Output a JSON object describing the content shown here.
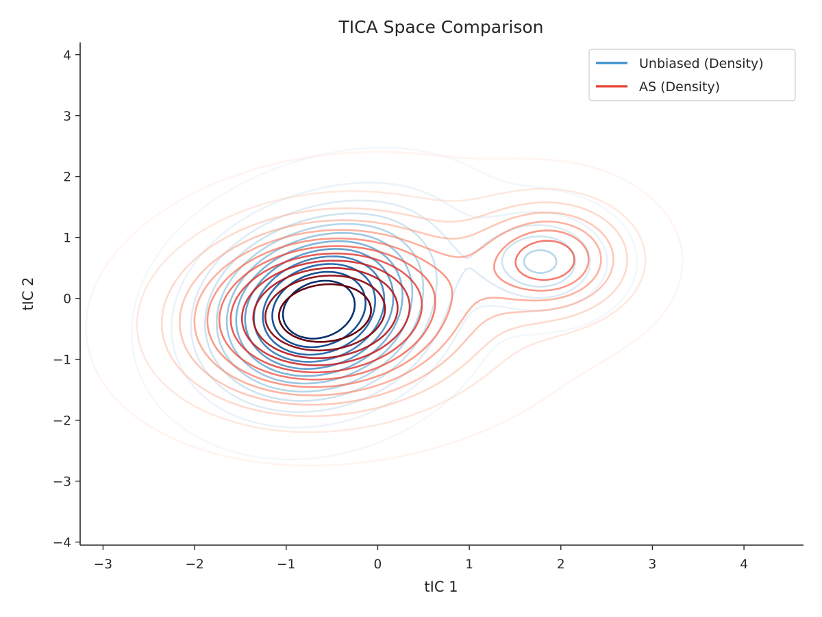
{
  "chart_data": {
    "type": "contour",
    "title": "TICA Space Comparison",
    "xlabel": "tIC 1",
    "ylabel": "tIC 2",
    "xlim": [
      -3.25,
      4.65
    ],
    "ylim": [
      -4.05,
      4.2
    ],
    "xticks": [
      -3,
      -2,
      -1,
      0,
      1,
      2,
      3,
      4
    ],
    "yticks": [
      -4,
      -3,
      -2,
      -1,
      0,
      1,
      2,
      3,
      4
    ],
    "xtick_labels": [
      "−3",
      "−2",
      "−1",
      "0",
      "1",
      "2",
      "3",
      "4"
    ],
    "ytick_labels": [
      "−4",
      "−3",
      "−2",
      "−1",
      "0",
      "1",
      "2",
      "3",
      "4"
    ],
    "grid": false,
    "legend": {
      "position": "top-right",
      "entries": [
        {
          "label": "Unbiased (Density)",
          "color": "#3a8fcd"
        },
        {
          "label": "AS (Density)",
          "color": "#e4402f"
        }
      ]
    },
    "series": [
      {
        "name": "Unbiased (Density)",
        "colormap": "Blues",
        "levels": 12,
        "components": [
          {
            "cx": -0.65,
            "cy": -0.2,
            "sx": 0.75,
            "sy": 0.9,
            "rho": 0.15,
            "w": 0.85
          },
          {
            "cx": 1.8,
            "cy": 0.6,
            "sx": 0.45,
            "sy": 0.5,
            "rho": 0.0,
            "w": 0.1
          },
          {
            "cx": 0.3,
            "cy": 1.2,
            "sx": 0.7,
            "sy": 0.7,
            "rho": 0.0,
            "w": 0.05
          }
        ]
      },
      {
        "name": "AS (Density)",
        "colormap": "Reds",
        "levels": 12,
        "components": [
          {
            "cx": -0.6,
            "cy": -0.25,
            "sx": 0.95,
            "sy": 0.9,
            "rho": 0.1,
            "w": 0.75
          },
          {
            "cx": 1.9,
            "cy": 0.65,
            "sx": 0.55,
            "sy": 0.6,
            "rho": 0.0,
            "w": 0.15
          },
          {
            "cx": 0.6,
            "cy": 0.1,
            "sx": 1.4,
            "sy": 1.4,
            "rho": 0.0,
            "w": 0.1
          }
        ]
      }
    ]
  }
}
